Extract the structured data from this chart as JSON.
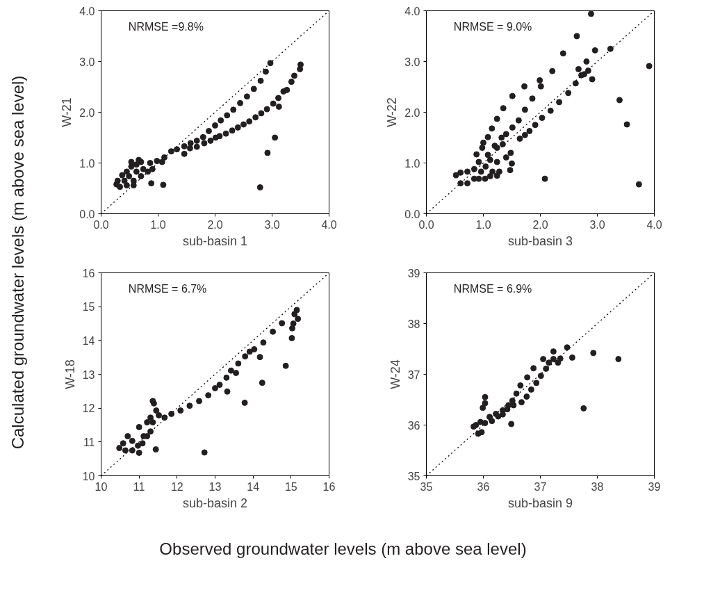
{
  "chart_data": [
    {
      "type": "scatter",
      "xlabel": "sub-basin 1",
      "ylabel": "W-21",
      "annotations": [
        "NRMSE =9.8%",
        "Calculated groundwater levels (m above sea level)"
      ],
      "marker": "circle",
      "grid": false,
      "xlim": [
        0,
        4
      ],
      "ylim": [
        0,
        4
      ],
      "xticks": [
        {
          "value": 0,
          "label": "0.0"
        },
        {
          "value": 1,
          "label": "1.0"
        },
        {
          "value": 2,
          "label": "2.0"
        },
        {
          "value": 3,
          "label": "3.0"
        },
        {
          "value": 4,
          "label": "4.0"
        }
      ],
      "yticks": [
        {
          "value": 0,
          "label": "0.0"
        },
        {
          "value": 1,
          "label": "1.0"
        },
        {
          "value": 2,
          "label": "2.0"
        },
        {
          "value": 3,
          "label": "3.0"
        },
        {
          "value": 4,
          "label": "4.0"
        }
      ],
      "series": [
        {
          "type": "line",
          "x": [
            0,
            4
          ],
          "values": [
            0,
            4
          ],
          "color": "#000000",
          "line_style": "dotted",
          "marker": "none"
        },
        {
          "color": "#231f20",
          "x": [
            2.97,
            2.89,
            2.8,
            2.68,
            2.56,
            2.44,
            2.32,
            2.21,
            2.1,
            2.0,
            1.89,
            1.79,
            1.68,
            1.57,
            1.46,
            1.33,
            3.5,
            3.49,
            3.39,
            3.34,
            3.26,
            3.2,
            3.11,
            3.02,
            3.12,
            2.91,
            2.81,
            2.71,
            2.6,
            2.5,
            2.4,
            2.3,
            2.19,
            2.08,
            2.01,
            1.92,
            1.81,
            1.68,
            1.56,
            1.46,
            1.23,
            1.11,
            0.98,
            0.86,
            0.7,
            0.62,
            0.53,
            0.45,
            0.37,
            0.29,
            0.27,
            0.33,
            0.45,
            0.57,
            0.7,
            0.82,
            0.9,
            1.07,
            0.62,
            0.49,
            0.74,
            0.41,
            0.57,
            0.66,
            0.53,
            0.88,
            1.09,
            2.79,
            2.92,
            3.05
          ],
          "values": [
            2.97,
            2.8,
            2.62,
            2.46,
            2.31,
            2.18,
            2.05,
            1.94,
            1.84,
            1.74,
            1.63,
            1.51,
            1.44,
            1.39,
            1.33,
            1.27,
            2.94,
            2.85,
            2.72,
            2.6,
            2.44,
            2.41,
            2.28,
            2.17,
            2.11,
            2.06,
            1.98,
            1.9,
            1.82,
            1.76,
            1.7,
            1.64,
            1.58,
            1.53,
            1.5,
            1.44,
            1.39,
            1.32,
            1.29,
            1.18,
            1.23,
            1.11,
            1.04,
            1.0,
            1.02,
            0.97,
            0.93,
            0.83,
            0.76,
            0.65,
            0.58,
            0.53,
            0.56,
            0.65,
            0.74,
            0.83,
            0.88,
            1.02,
            0.83,
            0.74,
            0.88,
            0.65,
            0.56,
            1.06,
            1.02,
            0.6,
            0.57,
            0.52,
            1.2,
            1.5
          ]
        }
      ]
    },
    {
      "type": "scatter",
      "xlabel": "sub-basin 3",
      "ylabel": "W-22",
      "annotations": [
        "NRMSE = 9.0%"
      ],
      "marker": "circle",
      "grid": false,
      "xlim": [
        0,
        4
      ],
      "ylim": [
        0,
        4
      ],
      "xticks": [
        {
          "value": 0,
          "label": "0.0"
        },
        {
          "value": 1,
          "label": "1.0"
        },
        {
          "value": 2,
          "label": "2.0"
        },
        {
          "value": 3,
          "label": "3.0"
        },
        {
          "value": 4,
          "label": "4.0"
        }
      ],
      "yticks": [
        {
          "value": 0,
          "label": "0.0"
        },
        {
          "value": 1,
          "label": "1.0"
        },
        {
          "value": 2,
          "label": "2.0"
        },
        {
          "value": 3,
          "label": "3.0"
        },
        {
          "value": 4,
          "label": "4.0"
        }
      ],
      "series": [
        {
          "type": "line",
          "x": [
            0,
            4
          ],
          "values": [
            0,
            4
          ],
          "color": "#000000",
          "line_style": "dotted",
          "marker": "none"
        },
        {
          "color": "#231f20",
          "x": [
            2.89,
            2.64,
            2.4,
            2.96,
            3.23,
            2.81,
            2.67,
            2.84,
            2.72,
            2.77,
            2.91,
            2.62,
            2.49,
            2.33,
            2.18,
            2.03,
            1.91,
            1.81,
            1.73,
            1.64,
            3.91,
            3.39,
            3.52,
            3.73,
            2.08,
            2.21,
            1.99,
            2.01,
            1.72,
            1.86,
            1.73,
            1.62,
            1.51,
            1.4,
            1.51,
            1.35,
            1.24,
            1.15,
            1.08,
            1.0,
            0.98,
            0.88,
            1.32,
            1.34,
            1.24,
            1.48,
            1.4,
            1.5,
            1.47,
            1.24,
            1.12,
            1.04,
            0.96,
            0.84,
            0.72,
            0.6,
            0.52,
            0.6,
            0.72,
            0.84,
            1.03,
            1.12,
            1.24,
            1.28,
            1.16,
            0.92,
            1.08,
            1.2,
            0.92
          ],
          "values": [
            3.94,
            3.5,
            3.16,
            3.22,
            3.25,
            3.0,
            2.85,
            2.82,
            2.73,
            2.75,
            2.65,
            2.57,
            2.38,
            2.2,
            2.03,
            1.89,
            1.75,
            1.63,
            1.55,
            1.48,
            2.91,
            2.24,
            1.76,
            0.58,
            0.69,
            2.81,
            2.63,
            2.51,
            2.51,
            2.27,
            2.05,
            1.84,
            1.7,
            1.57,
            2.32,
            2.08,
            1.87,
            1.68,
            1.51,
            1.4,
            1.3,
            1.17,
            1.5,
            1.37,
            1.3,
            1.2,
            1.11,
            0.99,
            0.86,
            1.02,
            1.06,
            0.93,
            0.83,
            0.88,
            0.83,
            0.81,
            0.76,
            0.6,
            0.6,
            0.69,
            0.69,
            0.74,
            0.75,
            0.83,
            0.83,
            1.02,
            1.16,
            1.34,
            0.69
          ]
        }
      ]
    },
    {
      "type": "scatter",
      "xlabel": "sub-basin 2",
      "ylabel": "W-18",
      "annotations": [
        "NRMSE = 6.7%",
        "Observed groundwater levels (m above sea level)"
      ],
      "marker": "circle",
      "grid": false,
      "xlim": [
        10,
        16
      ],
      "ylim": [
        10,
        16
      ],
      "xticks": [
        10,
        11,
        12,
        13,
        14,
        15,
        16
      ],
      "yticks": [
        10,
        11,
        12,
        13,
        14,
        15,
        16
      ],
      "series": [
        {
          "type": "line",
          "x": [
            10,
            16
          ],
          "values": [
            10,
            16
          ],
          "color": "#000000",
          "line_style": "dotted",
          "marker": "none"
        },
        {
          "color": "#231f20",
          "x": [
            15.15,
            15.09,
            15.18,
            15.06,
            15.03,
            15.02,
            14.76,
            14.52,
            14.27,
            14.03,
            13.79,
            13.61,
            13.42,
            13.3,
            13.12,
            13.0,
            12.82,
            12.58,
            12.33,
            12.09,
            11.85,
            11.67,
            11.52,
            11.39,
            11.36,
            11.45,
            11.36,
            11.3,
            11.21,
            11.09,
            10.97,
            10.82,
            10.7,
            10.58,
            10.48,
            10.64,
            10.82,
            11.0,
            11.12,
            11.0,
            11.21,
            11.3,
            13.55,
            13.91,
            14.18,
            14.86,
            14.24,
            13.32,
            13.78,
            11.44,
            12.72
          ],
          "values": [
            14.9,
            14.78,
            14.64,
            14.5,
            14.36,
            14.07,
            14.51,
            14.26,
            13.94,
            13.74,
            13.53,
            13.32,
            13.11,
            12.9,
            12.69,
            12.59,
            12.38,
            12.21,
            12.07,
            11.93,
            11.83,
            11.72,
            11.79,
            12.14,
            12.21,
            11.93,
            11.58,
            11.31,
            11.17,
            10.96,
            10.89,
            11.03,
            11.17,
            10.96,
            10.82,
            10.75,
            10.75,
            10.68,
            11.17,
            11.44,
            11.58,
            11.72,
            13.04,
            13.67,
            13.51,
            13.25,
            12.75,
            12.49,
            12.16,
            10.78,
            10.69
          ]
        }
      ]
    },
    {
      "type": "scatter",
      "xlabel": "sub-basin 9",
      "ylabel": "W-24",
      "annotations": [
        "NRMSE = 6.9%"
      ],
      "marker": "circle",
      "grid": false,
      "xlim": [
        35,
        39
      ],
      "ylim": [
        35,
        39
      ],
      "xticks": [
        35,
        36,
        37,
        38,
        39
      ],
      "yticks": [
        35,
        36,
        37,
        38,
        39
      ],
      "series": [
        {
          "type": "line",
          "x": [
            35,
            39
          ],
          "values": [
            35,
            39
          ],
          "color": "#000000",
          "line_style": "dotted",
          "marker": "none"
        },
        {
          "color": "#231f20",
          "x": [
            37.47,
            37.23,
            37.05,
            37.56,
            37.93,
            38.37,
            37.76,
            36.49,
            37.35,
            37.23,
            37.15,
            37.31,
            37.1,
            36.88,
            37.01,
            36.77,
            36.93,
            36.65,
            36.84,
            36.58,
            36.76,
            36.51,
            36.67,
            36.53,
            36.44,
            36.34,
            36.22,
            36.11,
            36.03,
            36.03,
            35.99,
            35.95,
            35.87,
            35.83,
            35.91,
            35.97,
            36.03,
            36.15,
            36.26,
            36.34,
            36.42
          ],
          "values": [
            37.53,
            37.45,
            37.3,
            37.33,
            37.42,
            37.3,
            36.33,
            36.02,
            37.31,
            37.3,
            37.23,
            37.23,
            37.11,
            37.12,
            36.97,
            36.94,
            36.83,
            36.78,
            36.7,
            36.62,
            36.56,
            36.48,
            36.45,
            36.39,
            36.39,
            36.29,
            36.22,
            36.16,
            36.55,
            36.43,
            36.34,
            36.06,
            36.0,
            35.97,
            35.83,
            35.86,
            36.04,
            36.08,
            36.17,
            36.21,
            36.31
          ]
        }
      ]
    }
  ]
}
